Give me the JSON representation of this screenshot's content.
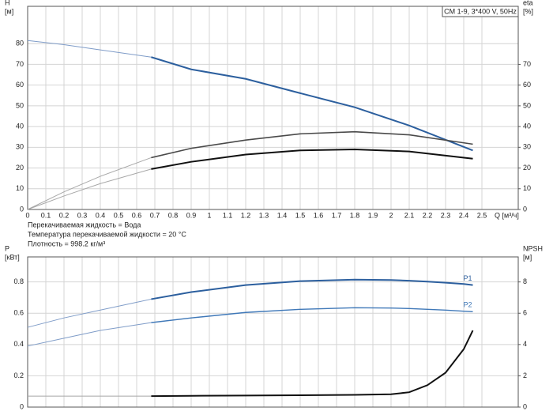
{
  "chart_data": [
    {
      "type": "line",
      "title": "CM 1-9, 3*400 V, 50Hz",
      "ylabel": [
        "H",
        "[м]"
      ],
      "y2label": [
        "eta",
        "[%]"
      ],
      "xlabel": "Q [м³/ч]",
      "notes": [
        "Перекачиваемая жидкость = Вода",
        "Температура перекачиваемой жидкости = 20 °C",
        "Плотность = 998.2 кг/м³"
      ],
      "xlim": [
        0,
        2.7
      ],
      "xticks": [
        0,
        0.1,
        0.2,
        0.3,
        0.4,
        0.5,
        0.6,
        0.7,
        0.8,
        0.9,
        1,
        1.1,
        1.2,
        1.3,
        1.4,
        1.5,
        1.6,
        1.7,
        1.8,
        1.9,
        2,
        2.1,
        2.2,
        2.3,
        2.4,
        2.5
      ],
      "xtick_labels": true,
      "ylim": [
        0,
        98
      ],
      "yticks": [
        0,
        10,
        20,
        30,
        40,
        50,
        60,
        70,
        80
      ],
      "y2lim": [
        0,
        98
      ],
      "y2ticks": [
        0,
        10,
        20,
        30,
        40,
        50,
        60,
        70
      ],
      "grid": true,
      "x": [
        0,
        0.2,
        0.4,
        0.68,
        0.9,
        1.2,
        1.5,
        1.8,
        2.1,
        2.45
      ],
      "series": [
        {
          "color": "#7f9cc8",
          "width": 1,
          "values": [
            81.5,
            79.5,
            77.0,
            73.5,
            null,
            null,
            null,
            null,
            null,
            null
          ]
        },
        {
          "color": "#2c5f9e",
          "width": 2,
          "values": [
            null,
            null,
            null,
            73.5,
            67.6,
            63.0,
            56.1,
            49.3,
            40.5,
            28.5
          ]
        },
        {
          "color": "#a8a8a8",
          "width": 1,
          "axis": "y2",
          "values": [
            0,
            8.5,
            16,
            25,
            null,
            null,
            null,
            null,
            null,
            null
          ]
        },
        {
          "color": "#4a4a4a",
          "width": 1.6,
          "axis": "y2",
          "values": [
            null,
            null,
            null,
            25,
            29.5,
            33.5,
            36.5,
            37.5,
            36,
            31.5
          ]
        },
        {
          "color": "#a8a8a8",
          "width": 1,
          "axis": "y2",
          "values": [
            0,
            6.5,
            12.5,
            19.5,
            null,
            null,
            null,
            null,
            null,
            null
          ]
        },
        {
          "color": "#111111",
          "width": 2,
          "axis": "y2",
          "values": [
            null,
            null,
            null,
            19.5,
            23,
            26.5,
            28.5,
            29,
            28,
            24.5
          ]
        }
      ]
    },
    {
      "type": "line",
      "ylabel": [
        "P",
        "[кВт]"
      ],
      "y2label": [
        "NPSH",
        "[м]"
      ],
      "xlim": [
        0,
        2.7
      ],
      "xticks": [
        0,
        0.1,
        0.2,
        0.3,
        0.4,
        0.5,
        0.6,
        0.7,
        0.8,
        0.9,
        1,
        1.1,
        1.2,
        1.3,
        1.4,
        1.5,
        1.6,
        1.7,
        1.8,
        1.9,
        2,
        2.1,
        2.2,
        2.3,
        2.4,
        2.5
      ],
      "xtick_labels": false,
      "ylim": [
        0,
        0.96
      ],
      "yticks": [
        0,
        0.2,
        0.4,
        0.6,
        0.8
      ],
      "y2lim": [
        0,
        9.6
      ],
      "y2ticks": [
        0,
        2,
        4,
        6,
        8
      ],
      "grid": true,
      "x": [
        0,
        0.2,
        0.4,
        0.68,
        0.9,
        1.2,
        1.5,
        1.8,
        2.0,
        2.1,
        2.2,
        2.3,
        2.4,
        2.45
      ],
      "series": [
        {
          "color": "#7f9cc8",
          "width": 1,
          "values": [
            0.51,
            0.57,
            0.62,
            0.69,
            null,
            null,
            null,
            null,
            null,
            null,
            null,
            null,
            null,
            null
          ]
        },
        {
          "name": "P1",
          "color": "#2c5f9e",
          "width": 2,
          "values": [
            null,
            null,
            null,
            0.69,
            0.735,
            0.78,
            0.805,
            0.815,
            0.812,
            0.808,
            0.802,
            0.795,
            0.787,
            0.78
          ]
        },
        {
          "color": "#7f9cc8",
          "width": 1,
          "values": [
            0.39,
            0.44,
            0.49,
            0.54,
            null,
            null,
            null,
            null,
            null,
            null,
            null,
            null,
            null,
            null
          ]
        },
        {
          "name": "P2",
          "color": "#3f78b8",
          "width": 1.4,
          "values": [
            null,
            null,
            null,
            0.54,
            0.57,
            0.605,
            0.625,
            0.635,
            0.633,
            0.63,
            0.625,
            0.62,
            0.613,
            0.61
          ]
        },
        {
          "color": "#a8a8a8",
          "width": 1,
          "axis": "y2",
          "values": [
            0.7,
            0.7,
            0.7,
            0.7,
            null,
            null,
            null,
            null,
            null,
            null,
            null,
            null,
            null,
            null
          ]
        },
        {
          "color": "#111111",
          "width": 2,
          "axis": "y2",
          "values": [
            null,
            null,
            null,
            0.7,
            0.72,
            0.74,
            0.76,
            0.78,
            0.82,
            0.95,
            1.4,
            2.2,
            3.7,
            4.9
          ]
        }
      ]
    }
  ]
}
